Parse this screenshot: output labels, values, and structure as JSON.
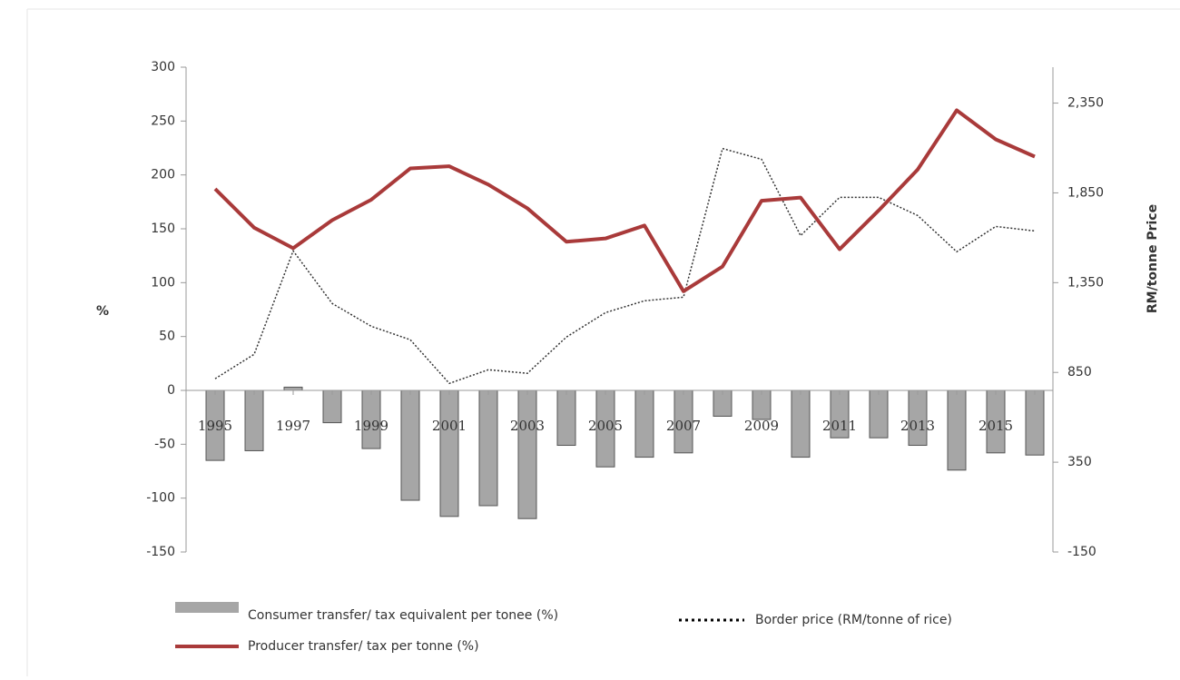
{
  "chart_data": {
    "type": "combo",
    "categories": [
      "1995",
      null,
      "1997",
      null,
      "1999",
      null,
      "2001",
      null,
      "2003",
      null,
      "2005",
      null,
      "2007",
      null,
      "2009",
      null,
      "2011",
      null,
      "2013",
      null,
      "2015",
      null
    ],
    "ylabel": "%",
    "y2label": "RM/tonne Price",
    "ylim": [
      -150,
      300
    ],
    "yticks": [
      -150,
      -100,
      -50,
      0,
      50,
      100,
      150,
      200,
      250,
      300
    ],
    "y2lim": [
      -150,
      2550
    ],
    "y2ticks": [
      {
        "value": -150,
        "label": "-150"
      },
      {
        "value": 350,
        "label": "350"
      },
      {
        "value": 850,
        "label": "850"
      },
      {
        "value": 1350,
        "label": "1,350"
      },
      {
        "value": 1850,
        "label": "1,850"
      },
      {
        "value": 2350,
        "label": "2,350"
      }
    ],
    "series": [
      {
        "name": "Consumer transfer/ tax equivalent per tonee (%)",
        "type": "bar",
        "color": "#a6a6a6",
        "values": [
          -65,
          -56,
          3,
          -30,
          -54,
          -102,
          -117,
          -107,
          -119,
          -51,
          -71,
          -62,
          -58,
          -24,
          -27,
          -62,
          -44,
          -44,
          -51,
          -74,
          -58,
          -60
        ]
      },
      {
        "name": "Border price (RM/tonne of rice)",
        "type": "dotted-line",
        "color": "#333333",
        "axis": "y2",
        "values": [
          815,
          951,
          1527,
          1234,
          1107,
          1032,
          789,
          865,
          845,
          1047,
          1183,
          1249,
          1269,
          2097,
          2037,
          1612,
          1825,
          1825,
          1724,
          1522,
          1663,
          1638
        ]
      },
      {
        "name": "Producer transfer/ tax per tonne (%)",
        "type": "line",
        "color": "#a93a3a",
        "values": [
          187,
          151,
          132,
          158,
          177,
          206,
          208,
          191,
          169,
          138,
          141,
          153,
          92,
          115,
          176,
          179,
          131,
          167,
          205,
          260,
          233,
          217
        ]
      }
    ]
  }
}
